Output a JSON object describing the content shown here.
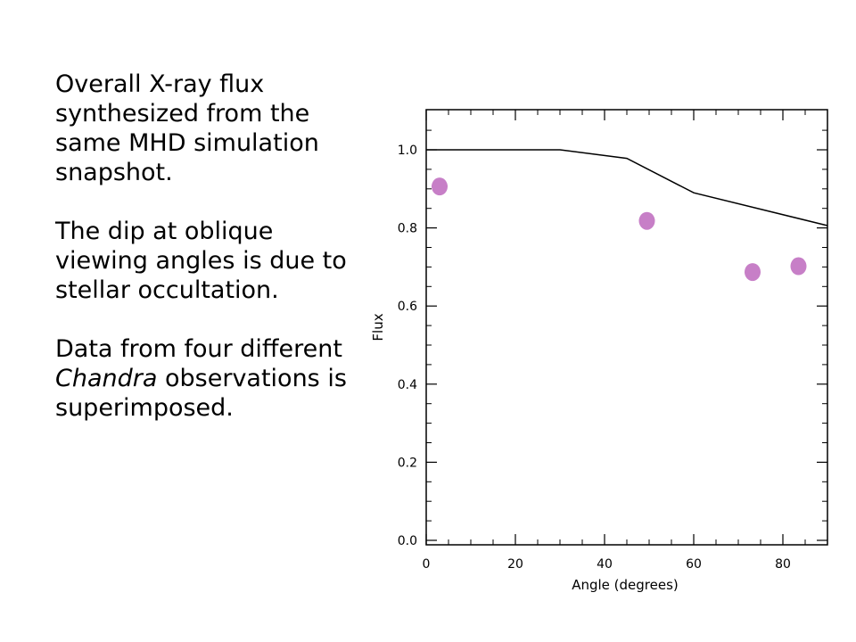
{
  "text": {
    "para1": "Overall X-ray flux synthesized from the same MHD simulation snapshot.",
    "para2": "The dip at oblique viewing angles is due to stellar occultation.",
    "para3_before": "Data from four different ",
    "para3_italic": "Chandra",
    "para3_after": " observations is superimposed."
  },
  "chart_data": {
    "type": "line",
    "title": "",
    "xlabel": "Angle (degrees)",
    "ylabel": "Flux",
    "xlim": [
      0,
      90
    ],
    "ylim": [
      0.0,
      1.1
    ],
    "x_ticks": [
      0,
      20,
      40,
      60,
      80
    ],
    "x_tick_labels": [
      "0",
      "20",
      "40",
      "60",
      "80"
    ],
    "y_ticks": [
      0.0,
      0.2,
      0.4,
      0.6,
      0.8,
      1.0
    ],
    "y_tick_labels": [
      "0.0",
      "0.2",
      "0.4",
      "0.6",
      "0.8",
      "1.0"
    ],
    "grid": false,
    "series": [
      {
        "type": "line",
        "color": "#000000",
        "x": [
          0,
          30,
          45,
          60,
          90
        ],
        "y": [
          1.0,
          1.0,
          0.978,
          0.89,
          0.806
        ]
      },
      {
        "type": "scatter",
        "color": "#c77fc7",
        "x": [
          3,
          49.5,
          73.2,
          83.5
        ],
        "y": [
          0.906,
          0.818,
          0.687,
          0.702
        ]
      }
    ]
  }
}
